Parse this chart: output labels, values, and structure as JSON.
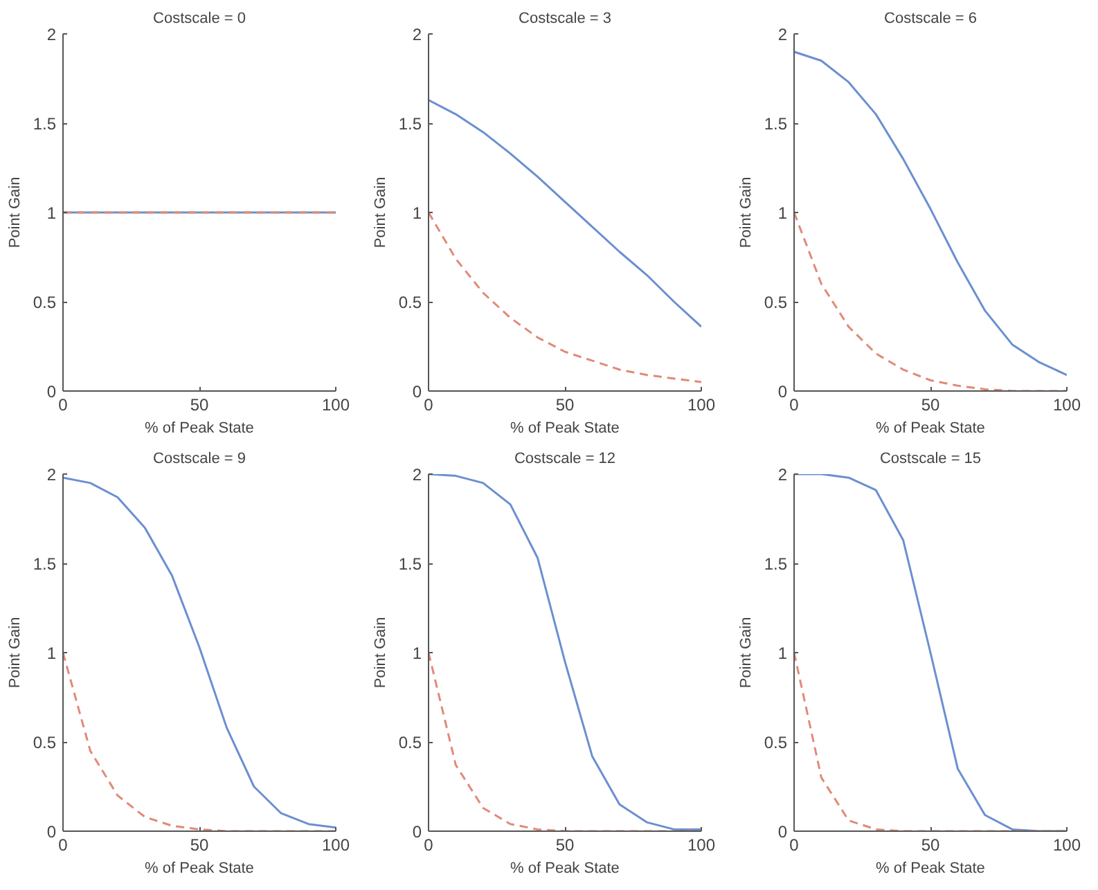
{
  "chart_data": [
    {
      "type": "line",
      "title": "Costscale = 0",
      "xlabel": "% of Peak State",
      "ylabel": "Point Gain",
      "x": [
        0,
        10,
        20,
        30,
        40,
        50,
        60,
        70,
        80,
        90,
        100
      ],
      "xlim": [
        0,
        100
      ],
      "ylim": [
        0,
        2
      ],
      "xticks": [
        0,
        50,
        100
      ],
      "yticks": [
        0,
        0.5,
        1,
        1.5,
        2
      ],
      "grid": false,
      "series": [
        {
          "color": "#6b8fd0",
          "line_style": "solid",
          "values": [
            1,
            1,
            1,
            1,
            1,
            1,
            1,
            1,
            1,
            1,
            1
          ]
        },
        {
          "color": "#e08a7a",
          "line_style": "dashed",
          "values": [
            1,
            1,
            1,
            1,
            1,
            1,
            1,
            1,
            1,
            1,
            1
          ]
        }
      ]
    },
    {
      "type": "line",
      "title": "Costscale = 3",
      "xlabel": "% of Peak State",
      "ylabel": "Point Gain",
      "x": [
        0,
        10,
        20,
        30,
        40,
        50,
        60,
        70,
        80,
        90,
        100
      ],
      "xlim": [
        0,
        100
      ],
      "ylim": [
        0,
        2
      ],
      "xticks": [
        0,
        50,
        100
      ],
      "yticks": [
        0,
        0.5,
        1,
        1.5,
        2
      ],
      "grid": false,
      "series": [
        {
          "color": "#6b8fd0",
          "line_style": "solid",
          "values": [
            1.63,
            1.55,
            1.45,
            1.33,
            1.2,
            1.06,
            0.92,
            0.78,
            0.65,
            0.5,
            0.36
          ]
        },
        {
          "color": "#e08a7a",
          "line_style": "dashed",
          "values": [
            1,
            0.74,
            0.55,
            0.41,
            0.3,
            0.22,
            0.17,
            0.12,
            0.09,
            0.07,
            0.05
          ]
        }
      ]
    },
    {
      "type": "line",
      "title": "Costscale = 6",
      "xlabel": "% of Peak State",
      "ylabel": "Point Gain",
      "x": [
        0,
        10,
        20,
        30,
        40,
        50,
        60,
        70,
        80,
        90,
        100
      ],
      "xlim": [
        0,
        100
      ],
      "ylim": [
        0,
        2
      ],
      "xticks": [
        0,
        50,
        100
      ],
      "yticks": [
        0,
        0.5,
        1,
        1.5,
        2
      ],
      "grid": false,
      "series": [
        {
          "color": "#6b8fd0",
          "line_style": "solid",
          "values": [
            1.9,
            1.85,
            1.73,
            1.55,
            1.3,
            1.02,
            0.72,
            0.45,
            0.26,
            0.16,
            0.09
          ]
        },
        {
          "color": "#e08a7a",
          "line_style": "dashed",
          "values": [
            1,
            0.6,
            0.36,
            0.21,
            0.12,
            0.06,
            0.03,
            0.01,
            0,
            0,
            0
          ]
        }
      ]
    },
    {
      "type": "line",
      "title": "Costscale = 9",
      "xlabel": "% of Peak State",
      "ylabel": "Point Gain",
      "x": [
        0,
        10,
        20,
        30,
        40,
        50,
        60,
        70,
        80,
        90,
        100
      ],
      "xlim": [
        0,
        100
      ],
      "ylim": [
        0,
        2
      ],
      "xticks": [
        0,
        50,
        100
      ],
      "yticks": [
        0,
        0.5,
        1,
        1.5,
        2
      ],
      "grid": false,
      "series": [
        {
          "color": "#6b8fd0",
          "line_style": "solid",
          "values": [
            1.98,
            1.95,
            1.87,
            1.7,
            1.43,
            1.03,
            0.58,
            0.25,
            0.1,
            0.04,
            0.02
          ]
        },
        {
          "color": "#e08a7a",
          "line_style": "dashed",
          "values": [
            1,
            0.45,
            0.2,
            0.08,
            0.03,
            0.01,
            0,
            0,
            0,
            0,
            0
          ]
        }
      ]
    },
    {
      "type": "line",
      "title": "Costscale = 12",
      "xlabel": "% of Peak State",
      "ylabel": "Point Gain",
      "x": [
        0,
        10,
        20,
        30,
        40,
        50,
        60,
        70,
        80,
        90,
        100
      ],
      "xlim": [
        0,
        100
      ],
      "ylim": [
        0,
        2
      ],
      "xticks": [
        0,
        50,
        100
      ],
      "yticks": [
        0,
        0.5,
        1,
        1.5,
        2
      ],
      "grid": false,
      "series": [
        {
          "color": "#6b8fd0",
          "line_style": "solid",
          "values": [
            2,
            1.99,
            1.95,
            1.83,
            1.53,
            0.95,
            0.42,
            0.15,
            0.05,
            0.01,
            0.01
          ]
        },
        {
          "color": "#e08a7a",
          "line_style": "dashed",
          "values": [
            1,
            0.37,
            0.13,
            0.04,
            0.01,
            0,
            0,
            0,
            0,
            0,
            0
          ]
        }
      ]
    },
    {
      "type": "line",
      "title": "Costscale = 15",
      "xlabel": "% of Peak State",
      "ylabel": "Point Gain",
      "x": [
        0,
        10,
        20,
        30,
        40,
        50,
        60,
        70,
        80,
        90,
        100
      ],
      "xlim": [
        0,
        100
      ],
      "ylim": [
        0,
        2
      ],
      "xticks": [
        0,
        50,
        100
      ],
      "yticks": [
        0,
        0.5,
        1,
        1.5,
        2
      ],
      "grid": false,
      "series": [
        {
          "color": "#6b8fd0",
          "line_style": "solid",
          "values": [
            2,
            2,
            1.98,
            1.91,
            1.63,
            1.0,
            0.35,
            0.09,
            0.01,
            0,
            0
          ]
        },
        {
          "color": "#e08a7a",
          "line_style": "dashed",
          "values": [
            1,
            0.3,
            0.06,
            0.01,
            0,
            0,
            0,
            0,
            0,
            0,
            0
          ]
        }
      ]
    }
  ]
}
